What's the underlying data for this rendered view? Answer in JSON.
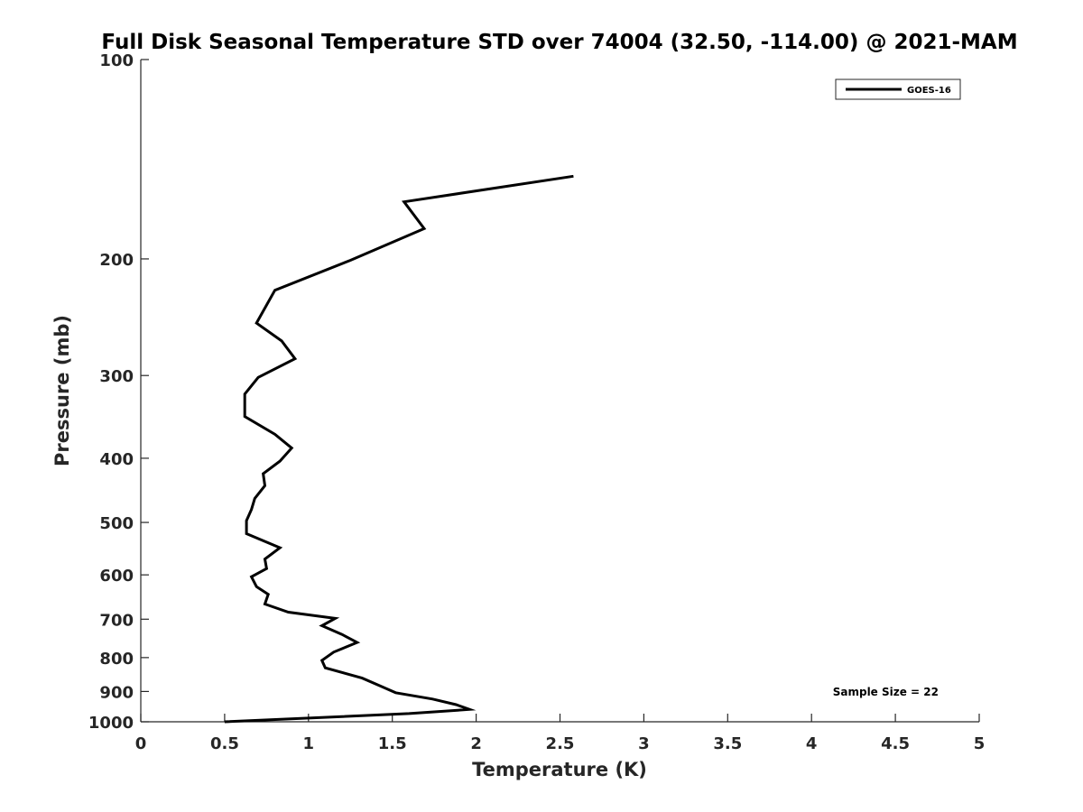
{
  "chart_data": {
    "type": "line",
    "title": "Full Disk Seasonal Temperature STD over 74004 (32.50, -114.00) @ 2021-MAM",
    "xlabel": "Temperature (K)",
    "ylabel": "Pressure (mb)",
    "xlim": [
      0,
      5
    ],
    "ylim": [
      100,
      1000
    ],
    "yscale": "log",
    "y_reversed": true,
    "grid": false,
    "legend_position": "top-right",
    "x_ticks": [
      "0",
      "0.5",
      "1",
      "1.5",
      "2",
      "2.5",
      "3",
      "3.5",
      "4",
      "4.5",
      "5"
    ],
    "y_ticks": [
      "100",
      "200",
      "300",
      "400",
      "500",
      "600",
      "700",
      "800",
      "900",
      "1000"
    ],
    "series": [
      {
        "name": "GOES-16",
        "color": "#000000",
        "points": [
          [
            2.58,
            150
          ],
          [
            1.57,
            164
          ],
          [
            1.69,
            180
          ],
          [
            1.25,
            201
          ],
          [
            0.8,
            223
          ],
          [
            0.69,
            250
          ],
          [
            0.84,
            266
          ],
          [
            0.92,
            283
          ],
          [
            0.7,
            302
          ],
          [
            0.62,
            320
          ],
          [
            0.62,
            346
          ],
          [
            0.8,
            368
          ],
          [
            0.9,
            386
          ],
          [
            0.83,
            404
          ],
          [
            0.73,
            422
          ],
          [
            0.74,
            440
          ],
          [
            0.68,
            460
          ],
          [
            0.66,
            478
          ],
          [
            0.63,
            497
          ],
          [
            0.63,
            520
          ],
          [
            0.83,
            546
          ],
          [
            0.74,
            568
          ],
          [
            0.75,
            587
          ],
          [
            0.66,
            604
          ],
          [
            0.69,
            625
          ],
          [
            0.76,
            642
          ],
          [
            0.74,
            664
          ],
          [
            0.88,
            683
          ],
          [
            1.16,
            698
          ],
          [
            1.08,
            716
          ],
          [
            1.2,
            738
          ],
          [
            1.29,
            759
          ],
          [
            1.15,
            785
          ],
          [
            1.08,
            808
          ],
          [
            1.1,
            829
          ],
          [
            1.32,
            859
          ],
          [
            1.42,
            881
          ],
          [
            1.52,
            904
          ],
          [
            1.74,
            924
          ],
          [
            1.88,
            942
          ],
          [
            1.96,
            958
          ],
          [
            1.6,
            972
          ],
          [
            0.5,
            1000
          ]
        ]
      }
    ],
    "annotation": "Sample Size = 22"
  }
}
